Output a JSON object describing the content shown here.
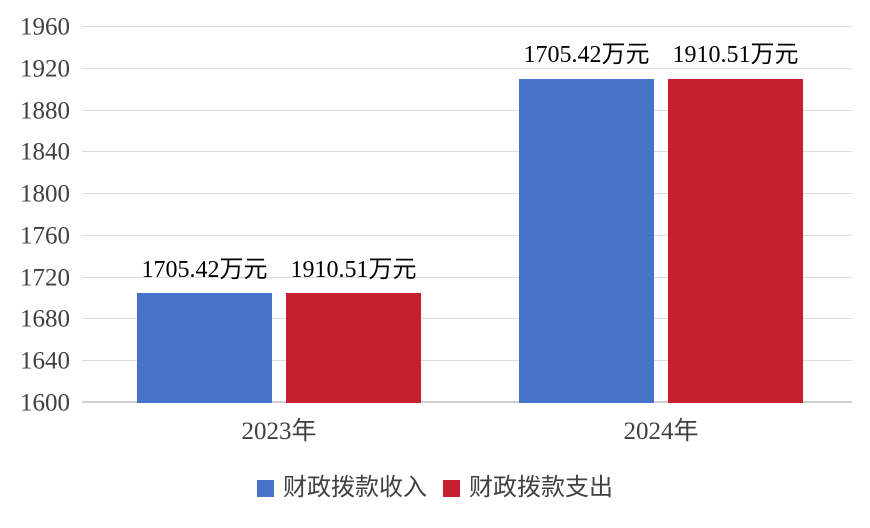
{
  "chart_data": {
    "type": "bar",
    "title": "",
    "unit": "万元",
    "categories": [
      "2023年",
      "2024年"
    ],
    "series": [
      {
        "name": "财政拨款收入",
        "color": "#4674C8",
        "values": [
          1705.42,
          1910.51
        ]
      },
      {
        "name": "财政拨款支出",
        "color": "#C6202E",
        "values": [
          1705.42,
          1910.51
        ]
      }
    ],
    "data_labels": [
      [
        "1705.42万元",
        "1910.51万元"
      ],
      [
        "1705.42万元",
        "1910.51万元"
      ]
    ],
    "y_axis": {
      "min": 1600,
      "max": 1960,
      "step": 40,
      "tick_labels": [
        "1600",
        "1640",
        "1680",
        "1720",
        "1760",
        "1800",
        "1840",
        "1880",
        "1920",
        "1960"
      ]
    },
    "grid": true,
    "legend_position": "bottom",
    "colors": {
      "income_blue": "#4674C8",
      "expense_red": "#C6202E",
      "gridline": "#DCDCDC",
      "axis_text": "#404040",
      "data_label_text": "#000000"
    }
  }
}
